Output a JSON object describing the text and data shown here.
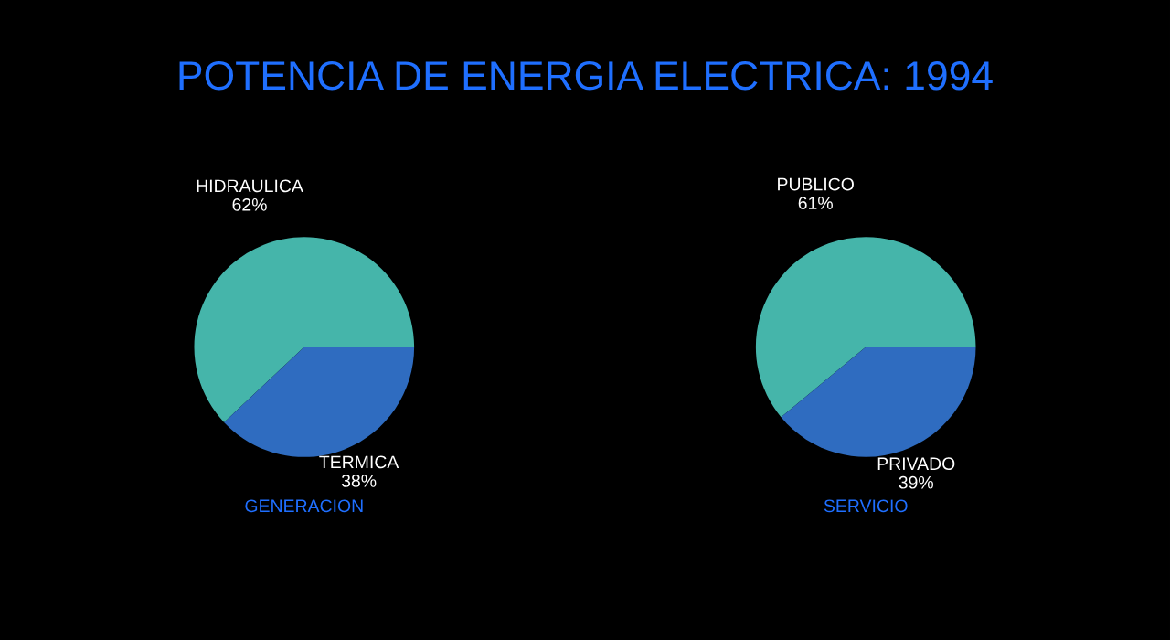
{
  "chart_data": [
    {
      "type": "pie",
      "title": "POTENCIA DE ENERGIA ELECTRICA: 1994",
      "xlabel": "GENERACION",
      "categories": [
        "HIDRAULICA",
        "TERMICA"
      ],
      "values": [
        62,
        38
      ],
      "value_labels": [
        "62%",
        "38%"
      ],
      "colors": [
        "#45b5aa",
        "#2f6cc0"
      ]
    },
    {
      "type": "pie",
      "xlabel": "SERVICIO",
      "categories": [
        "PUBLICO",
        "PRIVADO"
      ],
      "values": [
        61,
        39
      ],
      "value_labels": [
        "61%",
        "39%"
      ],
      "colors": [
        "#45b5aa",
        "#2f6cc0"
      ]
    }
  ]
}
